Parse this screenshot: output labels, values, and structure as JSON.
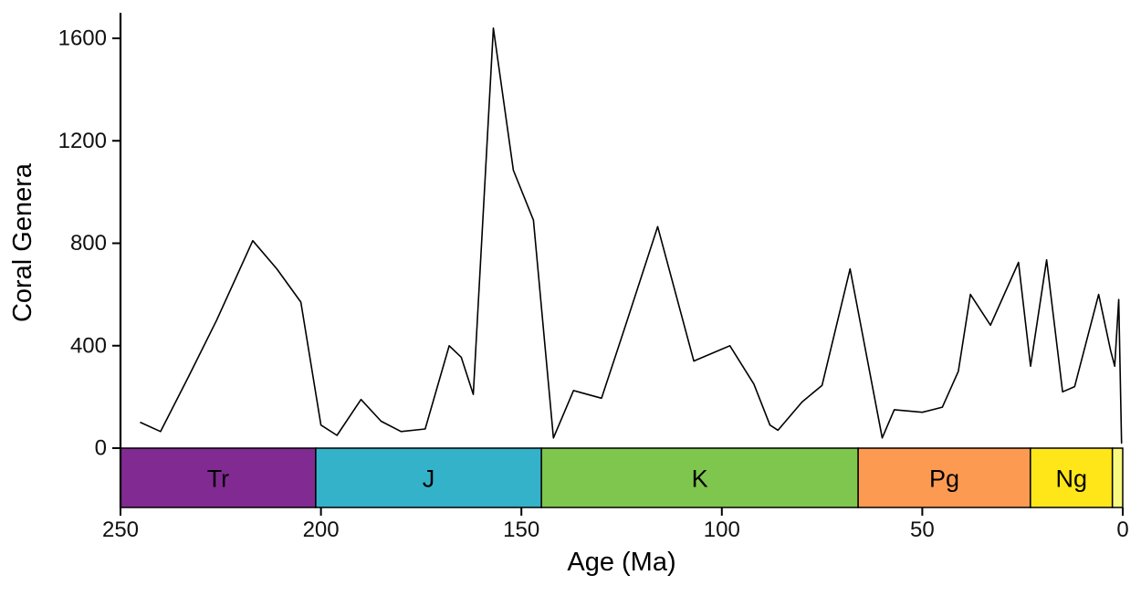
{
  "figure": {
    "background": "#ffffff"
  },
  "chart_data": {
    "type": "line",
    "title": "",
    "xlabel": "Age (Ma)",
    "ylabel": "Coral Genera",
    "xlim": [
      250,
      0
    ],
    "ylim": [
      0,
      1600
    ],
    "x_ticks": [
      250,
      200,
      150,
      100,
      50,
      0
    ],
    "y_ticks": [
      0,
      400,
      800,
      1200,
      1600
    ],
    "x_axis_reversed": true,
    "grid": false,
    "legend": "none",
    "line_color": "#000000",
    "axis_color": "#000000",
    "series": [
      {
        "name": "Coral Genera",
        "x": [
          245,
          240,
          233,
          226,
          217,
          211,
          205,
          200,
          196,
          190,
          185,
          180,
          174,
          168,
          165,
          162,
          157,
          152,
          147,
          142,
          137,
          130,
          124,
          116,
          107,
          98,
          92,
          88,
          86,
          80,
          75,
          68,
          60,
          57,
          50,
          45,
          41,
          38,
          33,
          26,
          23,
          19,
          15,
          12,
          6,
          3,
          2,
          1,
          0.3
        ],
        "y": [
          100,
          65,
          280,
          500,
          810,
          700,
          570,
          90,
          50,
          190,
          105,
          65,
          75,
          400,
          355,
          210,
          1640,
          1085,
          890,
          40,
          225,
          195,
          480,
          865,
          340,
          400,
          250,
          90,
          70,
          180,
          245,
          700,
          40,
          150,
          140,
          160,
          300,
          600,
          480,
          725,
          320,
          735,
          220,
          240,
          600,
          380,
          320,
          580,
          20
        ]
      }
    ],
    "geo_scale": [
      {
        "label": "Tr",
        "start": 251.9,
        "end": 201.3,
        "color": "#812B92"
      },
      {
        "label": "J",
        "start": 201.3,
        "end": 145,
        "color": "#34B2C9"
      },
      {
        "label": "K",
        "start": 145,
        "end": 66,
        "color": "#7FC64E"
      },
      {
        "label": "Pg",
        "start": 66,
        "end": 23.03,
        "color": "#FD9A52"
      },
      {
        "label": "Ng",
        "start": 23.03,
        "end": 2.58,
        "color": "#FFE619"
      },
      {
        "label": "",
        "start": 2.58,
        "end": 0,
        "color": "#F9F97F"
      }
    ],
    "geo_label_color": "#000000",
    "geo_border_color": "#000000"
  }
}
